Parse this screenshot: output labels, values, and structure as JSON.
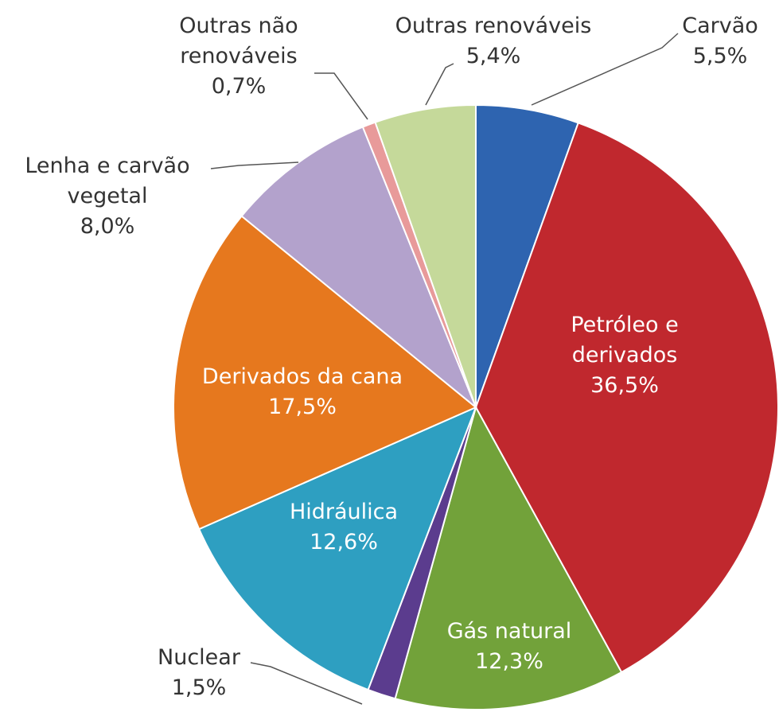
{
  "chart_data": {
    "type": "pie",
    "categories": [
      "Carvão",
      "Petróleo e derivados",
      "Gás natural",
      "Nuclear",
      "Hidráulica",
      "Derivados da cana",
      "Lenha e carvão vegetal",
      "Outras não renováveis",
      "Outras renováveis"
    ],
    "values": [
      5.5,
      36.5,
      12.3,
      1.5,
      12.6,
      17.5,
      8.0,
      0.7,
      5.4
    ],
    "value_labels": [
      "5,5%",
      "36,5%",
      "12,3%",
      "1,5%",
      "12,6%",
      "17,5%",
      "8,0%",
      "0,7%",
      "5,4%"
    ],
    "colors": [
      "#2e64b0",
      "#c0282e",
      "#72a23a",
      "#5b3c8e",
      "#2e9fc1",
      "#e6781e",
      "#b3a2cc",
      "#e89a9a",
      "#c5d99a"
    ]
  }
}
